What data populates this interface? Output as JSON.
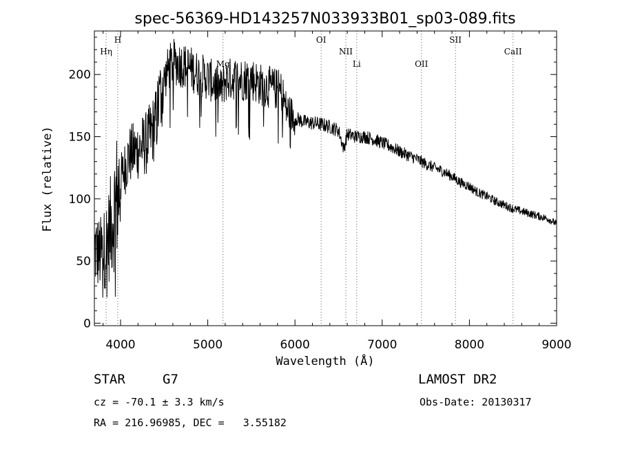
{
  "chart_data": {
    "type": "line",
    "title": "spec-56369-HD143257N033933B01_sp03-089.fits",
    "xlabel": "Wavelength (Å)",
    "ylabel": "Flux (relative)",
    "xlim": [
      3700,
      9000
    ],
    "ylim": [
      -2,
      235
    ],
    "x_ticks": [
      4000,
      5000,
      6000,
      7000,
      8000,
      9000
    ],
    "y_ticks": [
      0,
      50,
      100,
      150,
      200
    ],
    "grid": false,
    "line_color": "#000000",
    "spectrum_anchors": {
      "x": [
        3700,
        3760,
        3820,
        3880,
        3940,
        4000,
        4050,
        4100,
        4200,
        4300,
        4400,
        4450,
        4500,
        4550,
        4600,
        4700,
        4800,
        4900,
        5000,
        5100,
        5150,
        5200,
        5300,
        5400,
        5500,
        5600,
        5700,
        5800,
        5850,
        5900,
        6000,
        6100,
        6200,
        6300,
        6400,
        6500,
        6560,
        6600,
        6700,
        6800,
        6900,
        7000,
        7100,
        7200,
        7300,
        7400,
        7500,
        7600,
        7700,
        7800,
        7900,
        8000,
        8100,
        8200,
        8300,
        8400,
        8500,
        8600,
        8700,
        8800,
        8900,
        9000
      ],
      "y": [
        60,
        55,
        60,
        75,
        95,
        115,
        125,
        135,
        140,
        145,
        160,
        180,
        195,
        205,
        210,
        208,
        205,
        200,
        197,
        192,
        188,
        195,
        197,
        196,
        197,
        192,
        190,
        188,
        186,
        172,
        165,
        162,
        161,
        160,
        158,
        155,
        140,
        152,
        150,
        150,
        148,
        145,
        142,
        138,
        135,
        132,
        128,
        125,
        122,
        118,
        113,
        110,
        105,
        102,
        98,
        95,
        92,
        90,
        88,
        86,
        84,
        80
      ]
    },
    "spectrum_noise_fraction": 0.06,
    "line_markers": [
      {
        "label": "Hη",
        "x": 3835
      },
      {
        "label": "H",
        "x": 3968
      },
      {
        "label": "Mg",
        "x": 5175
      },
      {
        "label": "OI",
        "x": 6300
      },
      {
        "label": "NII",
        "x": 6583
      },
      {
        "label": "Li",
        "x": 6708
      },
      {
        "label": "OII",
        "x": 7450
      },
      {
        "label": "SII",
        "x": 7840
      },
      {
        "label": "CaII",
        "x": 8500
      }
    ]
  },
  "info": {
    "object_type": "STAR",
    "subclass": "G7",
    "survey": "LAMOST DR2",
    "velocity": "cz = -70.1 ± 3.3 km/s",
    "obs_date": "Obs-Date: 20130317",
    "coords": "RA = 216.96985, DEC =   3.55182"
  }
}
